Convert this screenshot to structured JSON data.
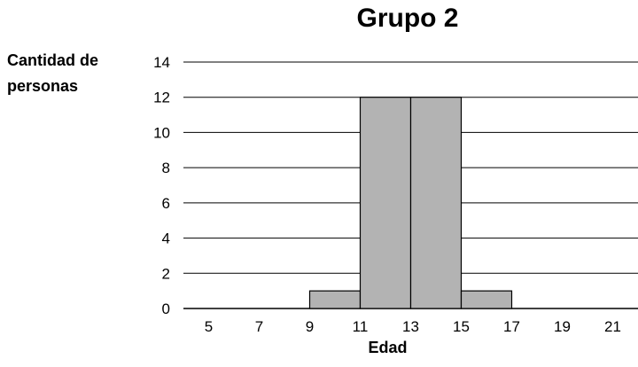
{
  "chart_data": {
    "type": "bar",
    "title": "Grupo 2",
    "xlabel": "Edad",
    "ylabel": [
      "Cantidad de",
      "personas"
    ],
    "x_ticks": [
      5,
      7,
      9,
      11,
      13,
      15,
      17,
      19,
      21
    ],
    "y_ticks": [
      0,
      2,
      4,
      6,
      8,
      10,
      12,
      14
    ],
    "ylim": [
      0,
      14
    ],
    "xlim": [
      4,
      22
    ],
    "grid": true,
    "bins": [
      {
        "from": 9,
        "to": 11,
        "value": 1
      },
      {
        "from": 11,
        "to": 13,
        "value": 12
      },
      {
        "from": 13,
        "to": 15,
        "value": 12
      },
      {
        "from": 15,
        "to": 17,
        "value": 1
      }
    ],
    "bar_color": "#b3b3b3"
  }
}
